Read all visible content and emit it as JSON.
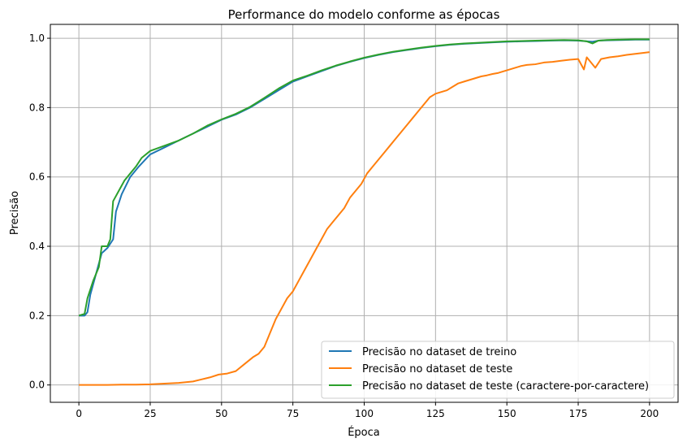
{
  "chart_data": {
    "type": "line",
    "title": "Performance do modelo conforme as épocas",
    "xlabel": "Época",
    "ylabel": "Precisão",
    "xlim": [
      -10,
      210
    ],
    "ylim": [
      -0.05,
      1.04
    ],
    "xticks": [
      0,
      25,
      50,
      75,
      100,
      125,
      150,
      175,
      200
    ],
    "yticks": [
      0.0,
      0.2,
      0.4,
      0.6,
      0.8,
      1.0
    ],
    "xtick_labels": [
      "0",
      "25",
      "50",
      "75",
      "100",
      "125",
      "150",
      "175",
      "200"
    ],
    "ytick_labels": [
      "0.0",
      "0.2",
      "0.4",
      "0.6",
      "0.8",
      "1.0"
    ],
    "grid": true,
    "legend_position": "bottom-right",
    "series": [
      {
        "name": "Precisão no dataset de treino",
        "color": "#1f77b4",
        "points": [
          [
            0,
            0.2
          ],
          [
            2,
            0.2
          ],
          [
            3,
            0.21
          ],
          [
            4,
            0.26
          ],
          [
            6,
            0.32
          ],
          [
            8,
            0.38
          ],
          [
            10,
            0.395
          ],
          [
            12,
            0.42
          ],
          [
            13,
            0.5
          ],
          [
            15,
            0.55
          ],
          [
            18,
            0.6
          ],
          [
            21,
            0.63
          ],
          [
            25,
            0.665
          ],
          [
            30,
            0.685
          ],
          [
            35,
            0.705
          ],
          [
            40,
            0.725
          ],
          [
            45,
            0.745
          ],
          [
            50,
            0.765
          ],
          [
            55,
            0.78
          ],
          [
            60,
            0.8
          ],
          [
            65,
            0.825
          ],
          [
            70,
            0.85
          ],
          [
            75,
            0.875
          ],
          [
            80,
            0.89
          ],
          [
            85,
            0.905
          ],
          [
            90,
            0.92
          ],
          [
            95,
            0.932
          ],
          [
            100,
            0.943
          ],
          [
            105,
            0.952
          ],
          [
            110,
            0.96
          ],
          [
            115,
            0.966
          ],
          [
            120,
            0.972
          ],
          [
            125,
            0.977
          ],
          [
            130,
            0.981
          ],
          [
            135,
            0.984
          ],
          [
            140,
            0.986
          ],
          [
            145,
            0.988
          ],
          [
            150,
            0.99
          ],
          [
            155,
            0.991
          ],
          [
            160,
            0.992
          ],
          [
            165,
            0.993
          ],
          [
            170,
            0.994
          ],
          [
            175,
            0.993
          ],
          [
            180,
            0.99
          ],
          [
            182,
            0.993
          ],
          [
            185,
            0.994
          ],
          [
            190,
            0.995
          ],
          [
            195,
            0.996
          ],
          [
            200,
            0.996
          ]
        ]
      },
      {
        "name": "Precisão no dataset de teste",
        "color": "#ff7f0e",
        "points": [
          [
            0,
            0.0
          ],
          [
            5,
            0.0
          ],
          [
            10,
            0.0
          ],
          [
            15,
            0.001
          ],
          [
            20,
            0.001
          ],
          [
            25,
            0.002
          ],
          [
            30,
            0.004
          ],
          [
            35,
            0.006
          ],
          [
            40,
            0.01
          ],
          [
            43,
            0.016
          ],
          [
            46,
            0.022
          ],
          [
            49,
            0.03
          ],
          [
            52,
            0.033
          ],
          [
            55,
            0.04
          ],
          [
            58,
            0.06
          ],
          [
            61,
            0.08
          ],
          [
            63,
            0.09
          ],
          [
            65,
            0.11
          ],
          [
            67,
            0.15
          ],
          [
            69,
            0.19
          ],
          [
            71,
            0.22
          ],
          [
            73,
            0.25
          ],
          [
            75,
            0.27
          ],
          [
            77,
            0.3
          ],
          [
            79,
            0.33
          ],
          [
            81,
            0.36
          ],
          [
            83,
            0.39
          ],
          [
            85,
            0.42
          ],
          [
            87,
            0.45
          ],
          [
            89,
            0.47
          ],
          [
            91,
            0.49
          ],
          [
            93,
            0.51
          ],
          [
            95,
            0.54
          ],
          [
            97,
            0.56
          ],
          [
            99,
            0.58
          ],
          [
            101,
            0.61
          ],
          [
            103,
            0.63
          ],
          [
            105,
            0.65
          ],
          [
            107,
            0.67
          ],
          [
            109,
            0.69
          ],
          [
            111,
            0.71
          ],
          [
            113,
            0.73
          ],
          [
            115,
            0.75
          ],
          [
            117,
            0.77
          ],
          [
            119,
            0.79
          ],
          [
            121,
            0.81
          ],
          [
            123,
            0.83
          ],
          [
            125,
            0.84
          ],
          [
            127,
            0.845
          ],
          [
            129,
            0.85
          ],
          [
            131,
            0.86
          ],
          [
            133,
            0.87
          ],
          [
            135,
            0.875
          ],
          [
            137,
            0.88
          ],
          [
            139,
            0.885
          ],
          [
            141,
            0.89
          ],
          [
            143,
            0.893
          ],
          [
            145,
            0.897
          ],
          [
            147,
            0.9
          ],
          [
            149,
            0.905
          ],
          [
            151,
            0.91
          ],
          [
            153,
            0.915
          ],
          [
            155,
            0.92
          ],
          [
            157,
            0.923
          ],
          [
            160,
            0.925
          ],
          [
            163,
            0.93
          ],
          [
            166,
            0.932
          ],
          [
            169,
            0.935
          ],
          [
            172,
            0.938
          ],
          [
            175,
            0.94
          ],
          [
            177,
            0.91
          ],
          [
            178,
            0.945
          ],
          [
            181,
            0.915
          ],
          [
            183,
            0.94
          ],
          [
            186,
            0.945
          ],
          [
            189,
            0.948
          ],
          [
            192,
            0.952
          ],
          [
            195,
            0.955
          ],
          [
            198,
            0.958
          ],
          [
            200,
            0.96
          ]
        ]
      },
      {
        "name": "Precisão no dataset de teste (caractere-por-caractere)",
        "color": "#2ca02c",
        "points": [
          [
            0,
            0.2
          ],
          [
            2,
            0.205
          ],
          [
            3,
            0.25
          ],
          [
            5,
            0.3
          ],
          [
            7,
            0.34
          ],
          [
            8,
            0.4
          ],
          [
            10,
            0.4
          ],
          [
            11,
            0.42
          ],
          [
            12,
            0.53
          ],
          [
            14,
            0.56
          ],
          [
            16,
            0.59
          ],
          [
            18,
            0.61
          ],
          [
            20,
            0.63
          ],
          [
            22,
            0.655
          ],
          [
            25,
            0.675
          ],
          [
            30,
            0.69
          ],
          [
            35,
            0.705
          ],
          [
            40,
            0.725
          ],
          [
            45,
            0.748
          ],
          [
            50,
            0.766
          ],
          [
            55,
            0.782
          ],
          [
            60,
            0.802
          ],
          [
            65,
            0.828
          ],
          [
            70,
            0.855
          ],
          [
            75,
            0.878
          ],
          [
            80,
            0.892
          ],
          [
            85,
            0.907
          ],
          [
            90,
            0.921
          ],
          [
            95,
            0.933
          ],
          [
            100,
            0.944
          ],
          [
            105,
            0.953
          ],
          [
            110,
            0.961
          ],
          [
            115,
            0.967
          ],
          [
            120,
            0.973
          ],
          [
            125,
            0.978
          ],
          [
            130,
            0.982
          ],
          [
            135,
            0.985
          ],
          [
            140,
            0.987
          ],
          [
            145,
            0.989
          ],
          [
            150,
            0.991
          ],
          [
            155,
            0.992
          ],
          [
            160,
            0.993
          ],
          [
            165,
            0.994
          ],
          [
            170,
            0.995
          ],
          [
            175,
            0.994
          ],
          [
            178,
            0.991
          ],
          [
            180,
            0.985
          ],
          [
            182,
            0.993
          ],
          [
            185,
            0.995
          ],
          [
            190,
            0.996
          ],
          [
            195,
            0.997
          ],
          [
            200,
            0.997
          ]
        ]
      }
    ]
  }
}
